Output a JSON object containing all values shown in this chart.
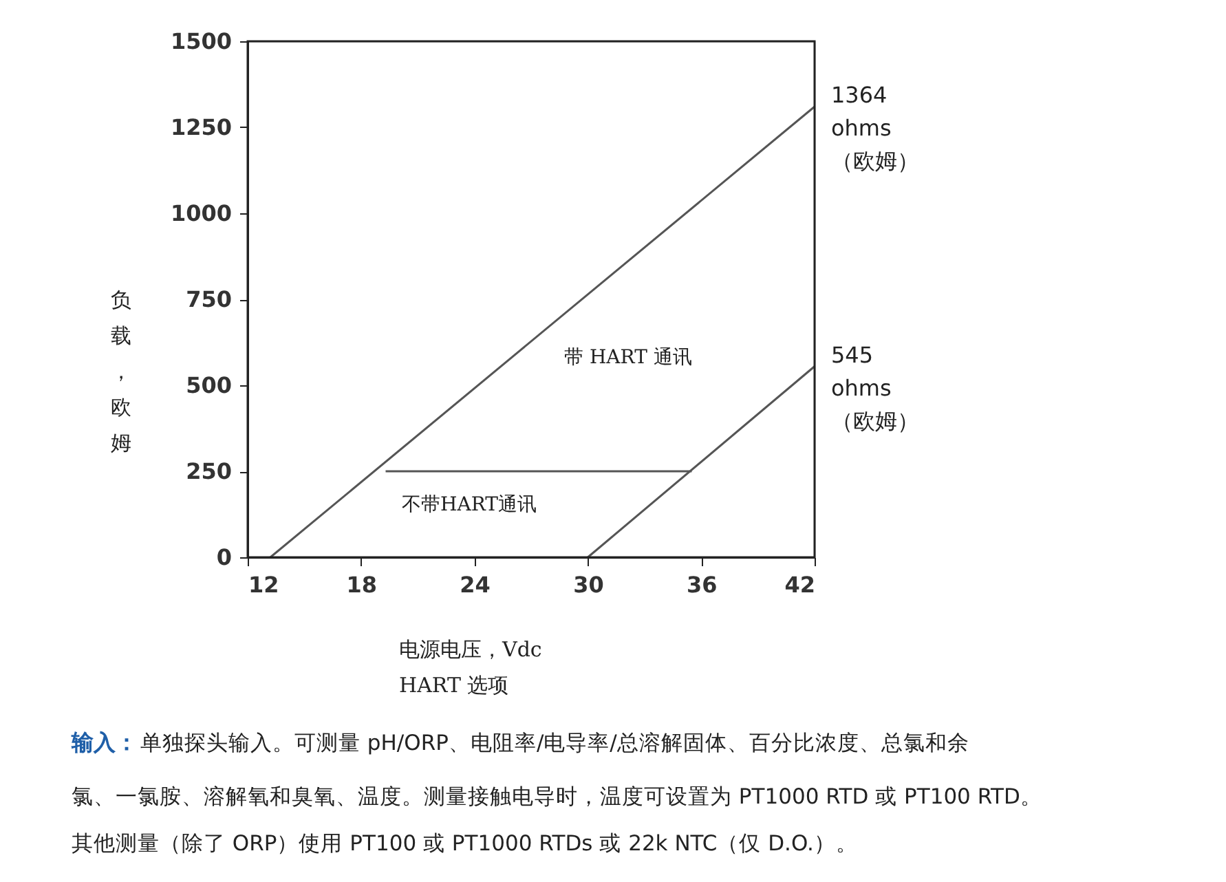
{
  "chart_data": {
    "type": "line",
    "xlabel": "电源电压，Vdc\nHART 选项",
    "ylabel": "负载，欧姆",
    "xlim": [
      12,
      42
    ],
    "xticks": [
      12,
      18,
      24,
      30,
      36,
      42
    ],
    "ylim": [
      0,
      1500
    ],
    "yticks": [
      0,
      250,
      500,
      750,
      1000,
      1250,
      1500
    ],
    "grid": false,
    "marker": "none",
    "line_style": "solid",
    "series": [
      {
        "color": "#555555",
        "x": [
          13.2,
          42
        ],
        "values": [
          0,
          1310
        ]
      },
      {
        "color": "#555555",
        "x": [
          30,
          42
        ],
        "values": [
          0,
          555
        ]
      },
      {
        "color": "#555555",
        "x": [
          19.3,
          35.5
        ],
        "values": [
          250,
          250
        ]
      }
    ],
    "annotations": [
      {
        "text": "1364\nohms\n（欧姆）",
        "x": 42,
        "y": 1310
      },
      {
        "text": "545\nohms\n（欧姆）",
        "x": 42,
        "y": 555
      },
      "带 HART 通讯",
      "不带HART通讯",
      "输入：",
      "单独探头输入。可测量 pH/ORP、电阻率/电导率/总溶解固体、百分比浓度、总氯和余",
      "氯、一氯胺、溶解氧和臭氧、温度。测量接触电导时，温度可设置为 PT1000 RTD 或 PT100 RTD。",
      "其他测量（除了 ORP）使用 PT100 或 PT1000 RTDs 或 22k NTC（仅 D.O.）。"
    ]
  }
}
